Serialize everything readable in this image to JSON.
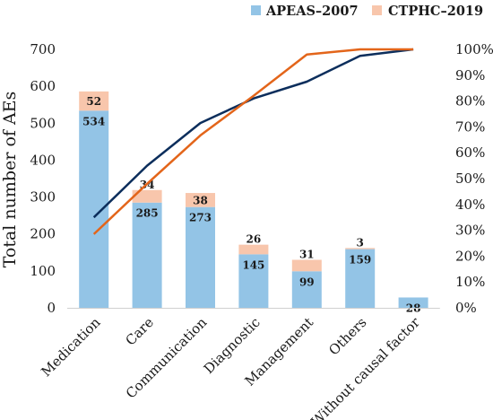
{
  "chart_data": {
    "type": "bar",
    "categories": [
      "Medication",
      "Care",
      "Communication",
      "Diagnostic",
      "Management",
      "Others",
      "Without causal factor"
    ],
    "series": [
      {
        "name": "APEAS–2007",
        "values": [
          534,
          285,
          273,
          145,
          99,
          159,
          28
        ],
        "color": "#93c4e6"
      },
      {
        "name": "CTPHC–2019",
        "values": [
          52,
          34,
          38,
          26,
          31,
          3,
          null
        ],
        "color": "#f8c6ac"
      }
    ],
    "cumulative_lines": [
      {
        "color": "#0c2e5c",
        "values": [
          35,
          55,
          71.5,
          81,
          87.5,
          97.5,
          100
        ]
      },
      {
        "color": "#e3651a",
        "values": [
          28.5,
          48,
          66.7,
          82,
          98,
          100,
          100
        ]
      }
    ],
    "ylabel": "Total number of AEs",
    "ylim": [
      0,
      700
    ],
    "yticks": [
      0,
      100,
      200,
      300,
      400,
      500,
      600,
      700
    ],
    "y2lim": [
      0,
      100
    ],
    "y2ticks": [
      "0%",
      "10%",
      "20%",
      "30%",
      "40%",
      "50%",
      "60%",
      "70%",
      "80%",
      "90%",
      "100%"
    ],
    "legend_position": "top-right",
    "grid": false
  }
}
